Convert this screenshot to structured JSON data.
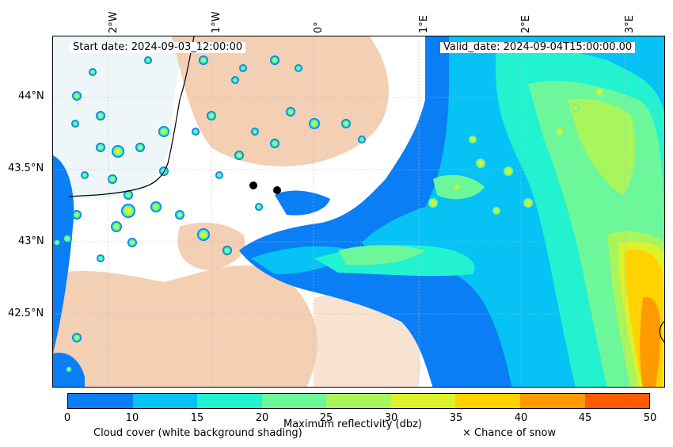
{
  "header": {
    "start_label": "Start date: 2024-09-03_12:00:00",
    "valid_label": "Valid_date: 2024-09-04T15:00:00.00"
  },
  "axes": {
    "longitude_labels": [
      "2°W",
      "1°W",
      "0°",
      "1°E",
      "2°E",
      "3°E"
    ],
    "latitude_labels": [
      "44°N",
      "43.5°N",
      "43°N",
      "42.5°N"
    ]
  },
  "colorbar": {
    "title": "Maximum reflectivity (dbz)",
    "ticks": [
      "0",
      "10",
      "15",
      "20",
      "25",
      "30",
      "35",
      "40",
      "45",
      "50"
    ],
    "colors": [
      "#0a7ef5",
      "#06c2f5",
      "#22f2d0",
      "#6cf79a",
      "#a8f55c",
      "#dcf22a",
      "#ffd200",
      "#ff9a00",
      "#ff5a00"
    ]
  },
  "legend": {
    "cloud_cover": "Cloud cover (white background shading)",
    "snow": "× Chance of snow"
  },
  "map": {
    "palette": {
      "cloud": "#f1c7a6",
      "cloud_light": "#f6d9c2",
      "sea_tint": "#dfeff4",
      "coast": "#000000"
    },
    "markers_count": 2
  }
}
